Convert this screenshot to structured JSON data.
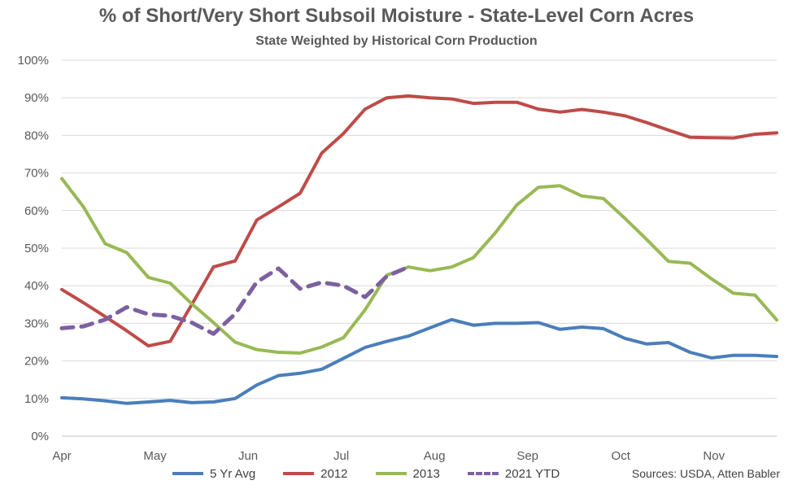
{
  "chart_data": {
    "type": "line",
    "title": "% of Short/Very Short Subsoil Moisture - State-Level Corn Acres",
    "subtitle": "State Weighted by Historical Corn Production",
    "source": "Sources: USDA, Atten Babler",
    "xlabel": "",
    "ylabel": "",
    "x_ticks": [
      "Apr",
      "May",
      "Jun",
      "Jul",
      "Aug",
      "Sep",
      "Oct",
      "Nov"
    ],
    "y_ticks": [
      "0%",
      "10%",
      "20%",
      "30%",
      "40%",
      "50%",
      "60%",
      "70%",
      "80%",
      "90%",
      "100%"
    ],
    "ylim": [
      0,
      100
    ],
    "x_unit": "week",
    "grid": true,
    "legend_position": "bottom",
    "series": [
      {
        "name": "5 Yr Avg",
        "color": "#4a7ebb",
        "dashed": false,
        "values": [
          10.2,
          9.9,
          9.4,
          8.7,
          9.1,
          9.5,
          8.9,
          9.1,
          10.0,
          13.6,
          16.1,
          16.7,
          17.8,
          20.7,
          23.6,
          25.2,
          26.6,
          28.8,
          31.0,
          29.5,
          30.0,
          30.0,
          30.2,
          28.4,
          29.0,
          28.6,
          26.0,
          24.5,
          24.9,
          22.3,
          20.8,
          21.5,
          21.5,
          21.2
        ]
      },
      {
        "name": "2012",
        "color": "#be4b48",
        "dashed": false,
        "values": [
          39.0,
          35.5,
          31.8,
          28.0,
          24.0,
          25.2,
          35.0,
          45.0,
          46.6,
          57.5,
          61.0,
          64.6,
          75.3,
          80.5,
          87.0,
          90.0,
          90.5,
          90.0,
          89.7,
          88.5,
          88.8,
          88.8,
          87.0,
          86.2,
          86.9,
          86.2,
          85.2,
          83.4,
          81.4,
          79.5,
          79.4,
          79.3,
          80.3,
          80.7
        ]
      },
      {
        "name": "2013",
        "color": "#98b954",
        "dashed": false,
        "values": [
          68.5,
          61.0,
          51.2,
          48.8,
          42.2,
          40.7,
          35.2,
          30.2,
          25.0,
          23.0,
          22.3,
          22.1,
          23.7,
          26.2,
          33.6,
          42.8,
          45.0,
          44.0,
          45.0,
          47.5,
          54.0,
          61.5,
          66.2,
          66.6,
          63.9,
          63.2,
          57.9,
          52.3,
          46.5,
          46.0,
          41.8,
          38.0,
          37.5,
          30.9
        ]
      },
      {
        "name": "2021 YTD",
        "color": "#7d60a0",
        "dashed": true,
        "values": [
          28.7,
          29.2,
          31.0,
          34.3,
          32.4,
          32.0,
          30.2,
          27.2,
          32.5,
          41.0,
          44.6,
          39.2,
          40.9,
          40.0,
          37.0,
          42.5,
          45.0
        ]
      }
    ]
  }
}
